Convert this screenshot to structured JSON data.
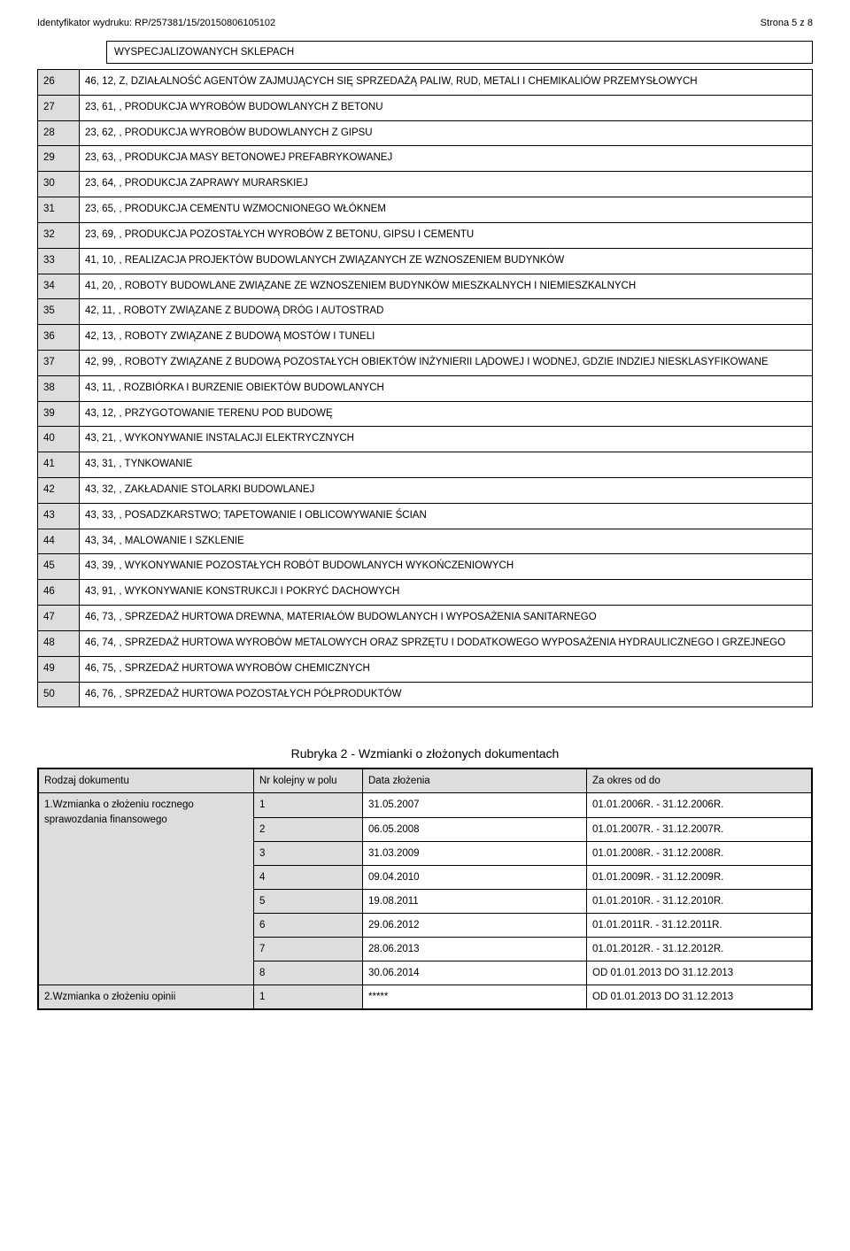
{
  "header": {
    "print_id": "Identyfikator wydruku: RP/257381/15/20150806105102",
    "page_num": "Strona 5 z 8"
  },
  "box_text": "WYSPECJALIZOWANYCH SKLEPACH",
  "rows": [
    {
      "n": "26",
      "t": "46, 12, Z, DZIAŁALNOŚĆ AGENTÓW ZAJMUJĄCYCH SIĘ SPRZEDAŻĄ PALIW, RUD, METALI I CHEMIKALIÓW PRZEMYSŁOWYCH"
    },
    {
      "n": "27",
      "t": "23, 61, , PRODUKCJA WYROBÓW BUDOWLANYCH Z BETONU"
    },
    {
      "n": "28",
      "t": "23, 62, , PRODUKCJA WYROBÓW BUDOWLANYCH Z GIPSU"
    },
    {
      "n": "29",
      "t": "23, 63, , PRODUKCJA MASY BETONOWEJ PREFABRYKOWANEJ"
    },
    {
      "n": "30",
      "t": "23, 64, , PRODUKCJA ZAPRAWY MURARSKIEJ"
    },
    {
      "n": "31",
      "t": "23, 65, , PRODUKCJA CEMENTU WZMOCNIONEGO WŁÓKNEM"
    },
    {
      "n": "32",
      "t": "23, 69, , PRODUKCJA POZOSTAŁYCH WYROBÓW Z BETONU, GIPSU I CEMENTU"
    },
    {
      "n": "33",
      "t": "41, 10, , REALIZACJA PROJEKTÓW BUDOWLANYCH ZWIĄZANYCH ZE WZNOSZENIEM BUDYNKÓW"
    },
    {
      "n": "34",
      "t": "41, 20, , ROBOTY BUDOWLANE ZWIĄZANE ZE WZNOSZENIEM BUDYNKÓW MIESZKALNYCH I NIEMIESZKALNYCH"
    },
    {
      "n": "35",
      "t": "42, 11, , ROBOTY ZWIĄZANE Z BUDOWĄ DRÓG I AUTOSTRAD"
    },
    {
      "n": "36",
      "t": "42, 13, , ROBOTY ZWIĄZANE Z BUDOWĄ MOSTÓW I TUNELI"
    },
    {
      "n": "37",
      "t": "42, 99, , ROBOTY ZWIĄZANE Z BUDOWĄ POZOSTAŁYCH OBIEKTÓW INŻYNIERII LĄDOWEJ I WODNEJ, GDZIE INDZIEJ NIESKLASYFIKOWANE"
    },
    {
      "n": "38",
      "t": "43, 11, , ROZBIÓRKA I BURZENIE OBIEKTÓW BUDOWLANYCH"
    },
    {
      "n": "39",
      "t": "43, 12, , PRZYGOTOWANIE TERENU POD BUDOWĘ"
    },
    {
      "n": "40",
      "t": "43, 21, , WYKONYWANIE INSTALACJI ELEKTRYCZNYCH"
    },
    {
      "n": "41",
      "t": "43, 31, , TYNKOWANIE"
    },
    {
      "n": "42",
      "t": "43, 32, , ZAKŁADANIE STOLARKI BUDOWLANEJ"
    },
    {
      "n": "43",
      "t": "43, 33, , POSADZKARSTWO; TAPETOWANIE I OBLICOWYWANIE ŚCIAN"
    },
    {
      "n": "44",
      "t": "43, 34, , MALOWANIE I SZKLENIE"
    },
    {
      "n": "45",
      "t": "43, 39, , WYKONYWANIE POZOSTAŁYCH ROBÓT BUDOWLANYCH WYKOŃCZENIOWYCH"
    },
    {
      "n": "46",
      "t": "43, 91, , WYKONYWANIE KONSTRUKCJI I POKRYĆ DACHOWYCH"
    },
    {
      "n": "47",
      "t": "46, 73, , SPRZEDAŻ HURTOWA DREWNA, MATERIAŁÓW BUDOWLANYCH I WYPOSAŻENIA SANITARNEGO"
    },
    {
      "n": "48",
      "t": "46, 74, , SPRZEDAŻ HURTOWA WYROBÓW METALOWYCH ORAZ SPRZĘTU I DODATKOWEGO WYPOSAŻENIA HYDRAULICZNEGO I GRZEJNEGO"
    },
    {
      "n": "49",
      "t": "46, 75, , SPRZEDAŻ HURTOWA WYROBÓW CHEMICZNYCH"
    },
    {
      "n": "50",
      "t": "46, 76, , SPRZEDAŻ HURTOWA POZOSTAŁYCH PÓŁPRODUKTÓW"
    }
  ],
  "section_title": "Rubryka 2 - Wzmianki o złożonych dokumentach",
  "docs": {
    "headers": {
      "a": "Rodzaj dokumentu",
      "b": "Nr kolejny w polu",
      "c": "Data złożenia",
      "d": "Za okres od do"
    },
    "group1_label": "1.Wzmianka o złożeniu rocznego sprawozdania finansowego",
    "group1_rows": [
      {
        "n": "1",
        "d": "31.05.2007",
        "p": "01.01.2006R. - 31.12.2006R."
      },
      {
        "n": "2",
        "d": "06.05.2008",
        "p": "01.01.2007R. - 31.12.2007R."
      },
      {
        "n": "3",
        "d": "31.03.2009",
        "p": "01.01.2008R. - 31.12.2008R."
      },
      {
        "n": "4",
        "d": "09.04.2010",
        "p": "01.01.2009R. - 31.12.2009R."
      },
      {
        "n": "5",
        "d": "19.08.2011",
        "p": "01.01.2010R. - 31.12.2010R."
      },
      {
        "n": "6",
        "d": "29.06.2012",
        "p": "01.01.2011R. - 31.12.2011R."
      },
      {
        "n": "7",
        "d": "28.06.2013",
        "p": "01.01.2012R. - 31.12.2012R."
      },
      {
        "n": "8",
        "d": "30.06.2014",
        "p": "OD 01.01.2013 DO 31.12.2013"
      }
    ],
    "group2_label": "2.Wzmianka o złożeniu opinii",
    "group2_rows": [
      {
        "n": "1",
        "d": "*****",
        "p": "OD 01.01.2013 DO 31.12.2013"
      }
    ]
  }
}
